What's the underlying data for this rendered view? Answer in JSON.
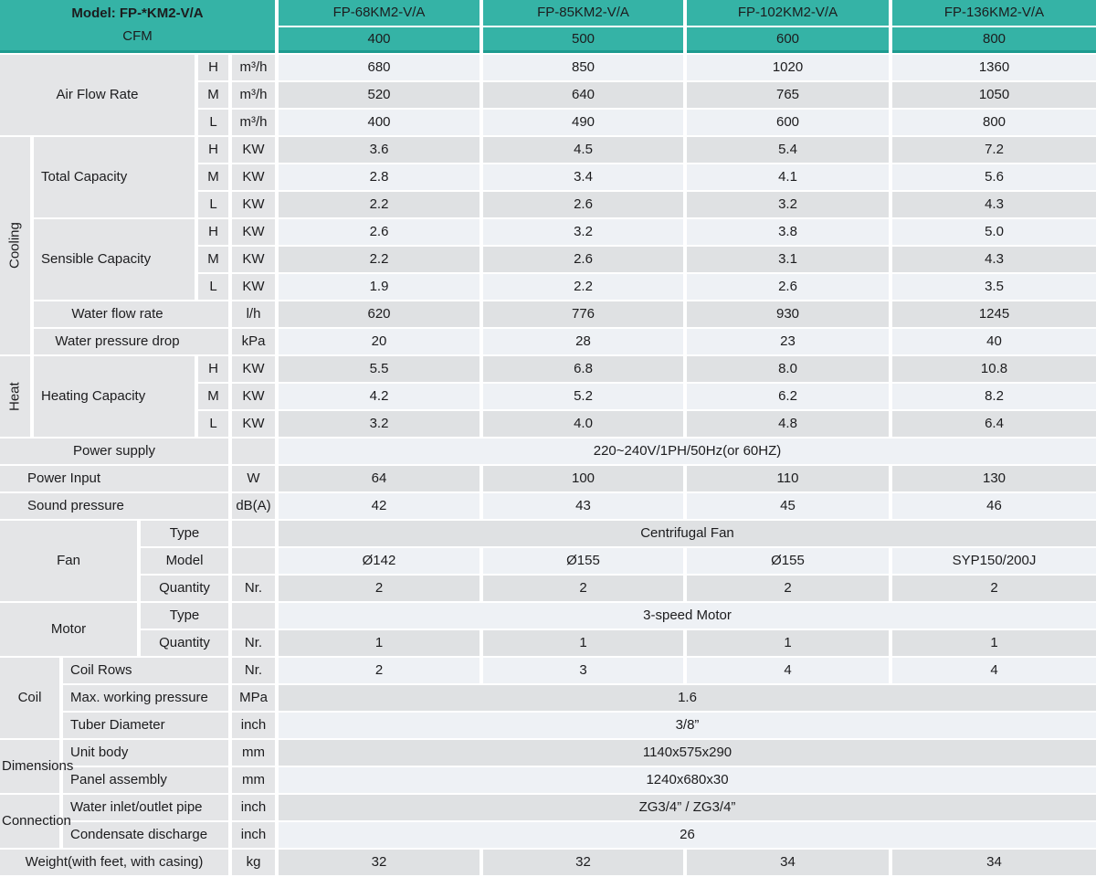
{
  "colors": {
    "teal": "#35b3a6",
    "teal_dark": "#1d9b8f",
    "label_bg": "#e4e5e7",
    "row_light": "#eef1f5",
    "row_gray": "#dfe1e3"
  },
  "header": {
    "model_label": "Model: FP-*KM2-V/A",
    "cfm_label": "CFM",
    "models": [
      "FP-68KM2-V/A",
      "FP-85KM2-V/A",
      "FP-102KM2-V/A",
      "FP-136KM2-V/A"
    ],
    "cfm": [
      "400",
      "500",
      "600",
      "800"
    ]
  },
  "speeds": [
    "H",
    "M",
    "L"
  ],
  "airflow": {
    "label": "Air Flow Rate",
    "unit": "m³/h",
    "values": [
      [
        "680",
        "850",
        "1020",
        "1360"
      ],
      [
        "520",
        "640",
        "765",
        "1050"
      ],
      [
        "400",
        "490",
        "600",
        "800"
      ]
    ]
  },
  "cooling": {
    "label": "Cooling",
    "total": {
      "label": "Total Capacity",
      "unit": "KW",
      "values": [
        [
          "3.6",
          "4.5",
          "5.4",
          "7.2"
        ],
        [
          "2.8",
          "3.4",
          "4.1",
          "5.6"
        ],
        [
          "2.2",
          "2.6",
          "3.2",
          "4.3"
        ]
      ]
    },
    "sensible": {
      "label": "Sensible Capacity",
      "unit": "KW",
      "values": [
        [
          "2.6",
          "3.2",
          "3.8",
          "5.0"
        ],
        [
          "2.2",
          "2.6",
          "3.1",
          "4.3"
        ],
        [
          "1.9",
          "2.2",
          "2.6",
          "3.5"
        ]
      ]
    },
    "water_flow": {
      "label": "Water flow rate",
      "unit": "l/h",
      "values": [
        "620",
        "776",
        "930",
        "1245"
      ]
    },
    "water_drop": {
      "label": "Water pressure drop",
      "unit": "kPa",
      "values": [
        "20",
        "28",
        "23",
        "40"
      ]
    }
  },
  "heat": {
    "label": "Heat",
    "heating": {
      "label": "Heating Capacity",
      "unit": "KW",
      "values": [
        [
          "5.5",
          "6.8",
          "8.0",
          "10.8"
        ],
        [
          "4.2",
          "5.2",
          "6.2",
          "8.2"
        ],
        [
          "3.2",
          "4.0",
          "4.8",
          "6.4"
        ]
      ]
    }
  },
  "power_supply": {
    "label": "Power supply",
    "value": "220~240V/1PH/50Hz(or 60HZ)"
  },
  "power_input": {
    "label": "Power Input",
    "unit": "W",
    "values": [
      "64",
      "100",
      "110",
      "130"
    ]
  },
  "sound_pressure": {
    "label": "Sound pressure",
    "unit": "dB(A)",
    "values": [
      "42",
      "43",
      "45",
      "46"
    ]
  },
  "fan": {
    "label": "Fan",
    "type": {
      "label": "Type",
      "value": "Centrifugal Fan"
    },
    "model": {
      "label": "Model",
      "values": [
        "Ø142",
        "Ø155",
        "Ø155",
        "SYP150/200J"
      ]
    },
    "quantity": {
      "label": "Quantity",
      "unit": "Nr.",
      "values": [
        "2",
        "2",
        "2",
        "2"
      ]
    }
  },
  "motor": {
    "label": "Motor",
    "type": {
      "label": "Type",
      "value": "3-speed Motor"
    },
    "quantity": {
      "label": "Quantity",
      "unit": "Nr.",
      "values": [
        "1",
        "1",
        "1",
        "1"
      ]
    }
  },
  "coil": {
    "label": "Coil",
    "rows": {
      "label": "Coil Rows",
      "unit": "Nr.",
      "values": [
        "2",
        "3",
        "4",
        "4"
      ]
    },
    "max_pressure": {
      "label": "Max. working pressure",
      "unit": "MPa",
      "value": "1.6"
    },
    "tube_diameter": {
      "label": "Tuber Diameter",
      "unit": "inch",
      "value": "3/8”"
    }
  },
  "dimensions": {
    "label": "Dimensions",
    "unit_body": {
      "label": "Unit body",
      "unit": "mm",
      "value": "1140x575x290"
    },
    "panel": {
      "label": "Panel assembly",
      "unit": "mm",
      "value": "1240x680x30"
    }
  },
  "connection": {
    "label": "Connection",
    "water_pipe": {
      "label": "Water inlet/outlet pipe",
      "unit": "inch",
      "value": "ZG3/4” / ZG3/4”"
    },
    "condensate": {
      "label": "Condensate discharge",
      "unit": "inch",
      "value": "26"
    }
  },
  "weight": {
    "label": "Weight(with feet, with casing)",
    "unit": "kg",
    "values": [
      "32",
      "32",
      "34",
      "34"
    ]
  }
}
